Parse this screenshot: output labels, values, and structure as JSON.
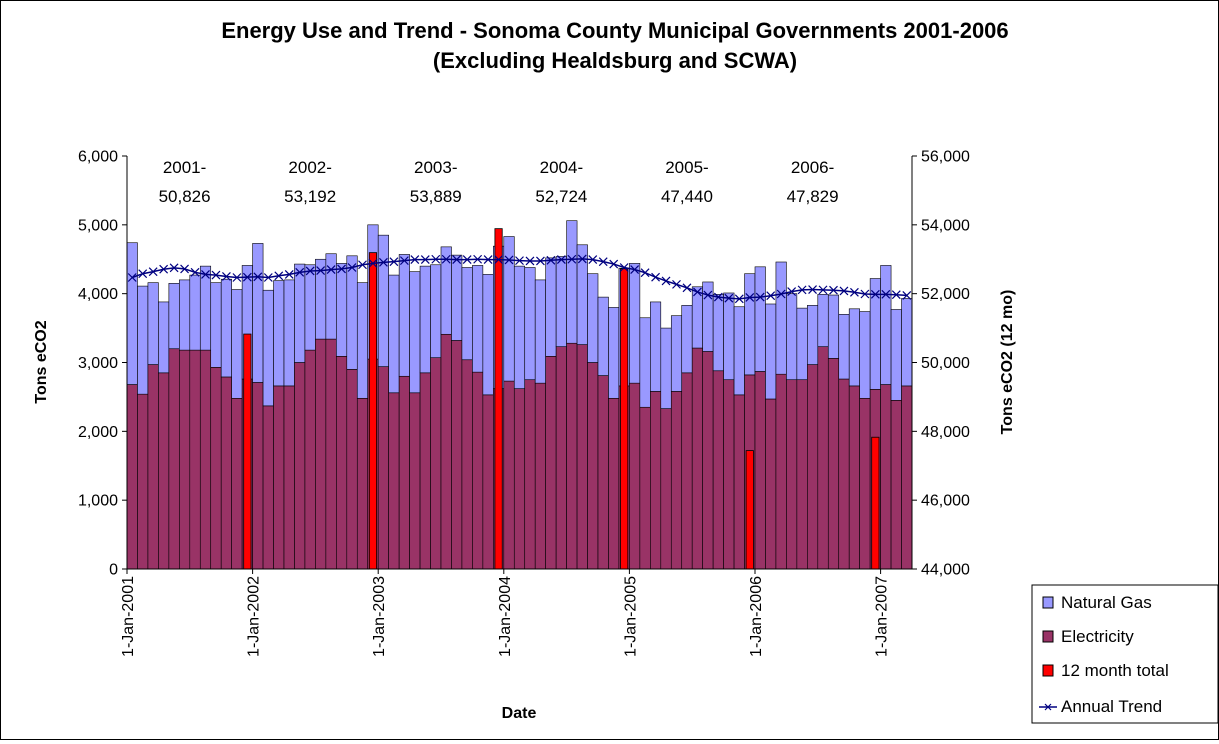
{
  "chart_data": {
    "type": "bar",
    "title": "Energy Use and Trend - Sonoma County Municipal Governments 2001-2006",
    "subtitle": "(Excluding Healdsburg and SCWA)",
    "xlabel": "Date",
    "ylabel": "Tons eCO2",
    "y2label": "Tons eCO2 (12 mo)",
    "ylim": [
      0,
      6000
    ],
    "y2lim": [
      44000,
      56000
    ],
    "yticks": [
      "0",
      "1,000",
      "2,000",
      "3,000",
      "4,000",
      "5,000",
      "6,000"
    ],
    "y2ticks": [
      "44,000",
      "46,000",
      "48,000",
      "50,000",
      "52,000",
      "54,000",
      "56,000"
    ],
    "xticks": [
      "1-Jan-2001",
      "1-Jan-2002",
      "1-Jan-2003",
      "1-Jan-2004",
      "1-Jan-2005",
      "1-Jan-2006",
      "1-Jan-2007"
    ],
    "stacked": true,
    "legend_position": "bottom-right",
    "series": [
      {
        "name": "Electricity",
        "color": "#993366",
        "values": [
          2680,
          2540,
          2970,
          2850,
          3200,
          3180,
          3180,
          3180,
          2930,
          2790,
          2480,
          2760,
          2710,
          2370,
          2660,
          2660,
          3000,
          3180,
          3340,
          3340,
          3090,
          2900,
          2480,
          3050,
          2940,
          2560,
          2800,
          2560,
          2850,
          3070,
          3410,
          3320,
          3040,
          2860,
          2530,
          2620,
          2730,
          2620,
          2750,
          2700,
          3090,
          3230,
          3280,
          3260,
          3000,
          2810,
          2480,
          2660,
          2700,
          2350,
          2580,
          2330,
          2580,
          2850,
          3210,
          3160,
          2880,
          2750,
          2530,
          2820,
          2870,
          2470,
          2830,
          2750,
          2750,
          2970,
          3230,
          3060,
          2760,
          2660,
          2480,
          2610,
          2680,
          2450,
          2660
        ]
      },
      {
        "name": "Natural Gas",
        "color": "#9999FF",
        "values": [
          2060,
          1570,
          1190,
          1030,
          950,
          1020,
          1090,
          1220,
          1230,
          1420,
          1580,
          1650,
          2020,
          1680,
          1530,
          1540,
          1430,
          1240,
          1160,
          1240,
          1350,
          1650,
          1680,
          1950,
          1910,
          1710,
          1770,
          1760,
          1550,
          1350,
          1270,
          1240,
          1340,
          1550,
          1750,
          2070,
          2100,
          1780,
          1630,
          1500,
          1430,
          1310,
          1780,
          1450,
          1290,
          1140,
          1320,
          1710,
          1740,
          1300,
          1300,
          1170,
          1100,
          980,
          890,
          1010,
          1110,
          1260,
          1280,
          1470,
          1520,
          1380,
          1630,
          1250,
          1040,
          860,
          760,
          920,
          940,
          1120,
          1260,
          1610,
          1730,
          1320,
          1270
        ]
      },
      {
        "name": "12 month total",
        "color": "#FF0000",
        "points": [
          {
            "x": "Dec-2001",
            "y": 50826
          },
          {
            "x": "Dec-2002",
            "y": 53192
          },
          {
            "x": "Dec-2003",
            "y": 53889
          },
          {
            "x": "Dec-2004",
            "y": 52724
          },
          {
            "x": "Dec-2005",
            "y": 47440
          },
          {
            "x": "Dec-2006",
            "y": 47829
          }
        ]
      },
      {
        "name": "Annual Trend",
        "color": "#000080",
        "marker": "x",
        "values": [
          52470,
          52580,
          52640,
          52710,
          52750,
          52720,
          52620,
          52560,
          52540,
          52500,
          52470,
          52480,
          52490,
          52470,
          52520,
          52560,
          52620,
          52660,
          52670,
          52700,
          52720,
          52760,
          52840,
          52880,
          52910,
          52930,
          52960,
          52990,
          52990,
          53000,
          53000,
          52990,
          52990,
          53000,
          52990,
          52990,
          52980,
          52960,
          52950,
          52950,
          52970,
          52990,
          53000,
          53010,
          52990,
          52930,
          52860,
          52760,
          52700,
          52610,
          52480,
          52370,
          52270,
          52170,
          52050,
          51960,
          51900,
          51870,
          51850,
          51890,
          51900,
          51940,
          51990,
          52060,
          52110,
          52120,
          52110,
          52100,
          52080,
          52040,
          51990,
          51980,
          51980,
          51970,
          51950
        ]
      }
    ],
    "annotations": [
      {
        "line1": "2001-",
        "line2": "50,826"
      },
      {
        "line1": "2002-",
        "line2": "53,192"
      },
      {
        "line1": "2003-",
        "line2": "53,889"
      },
      {
        "line1": "2004-",
        "line2": "52,724"
      },
      {
        "line1": "2005-",
        "line2": "47,440"
      },
      {
        "line1": "2006-",
        "line2": "47,829"
      }
    ],
    "legend": [
      "Natural Gas",
      "Electricity",
      "12 month total",
      "Annual Trend"
    ]
  }
}
